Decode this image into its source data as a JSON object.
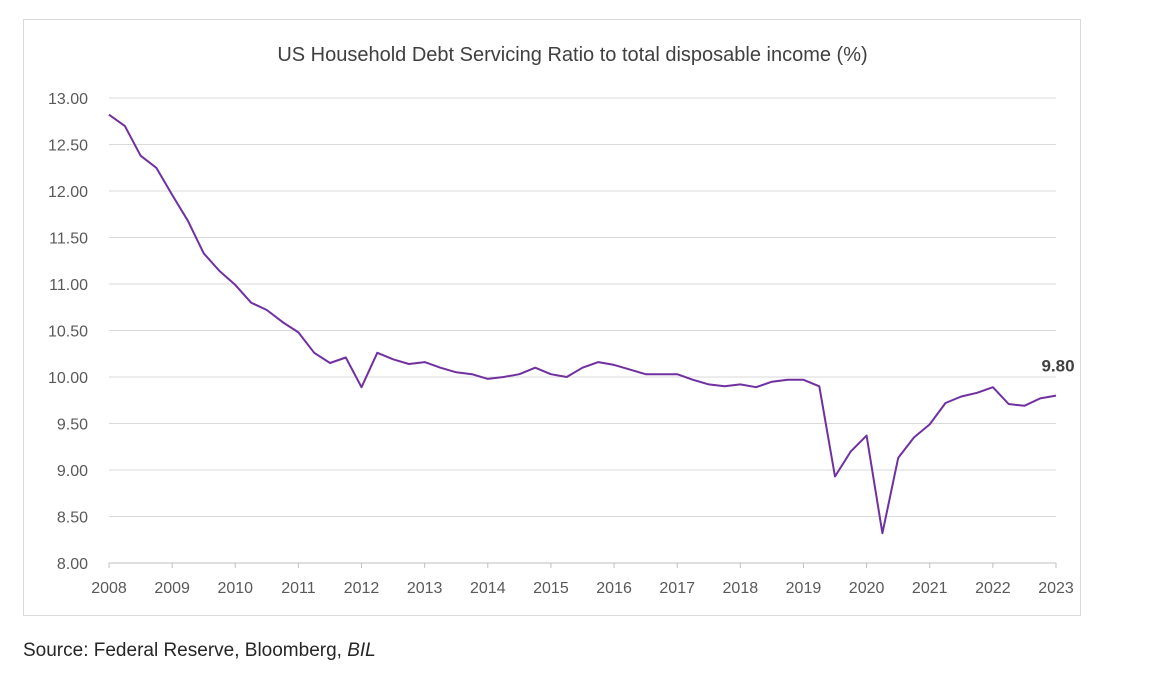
{
  "chart_data": {
    "type": "line",
    "title": "US Household Debt Servicing Ratio to total disposable income (%)",
    "xlabel": "",
    "ylabel": "",
    "ylim": [
      8.0,
      13.0
    ],
    "y_ticks": [
      "8.00",
      "8.50",
      "9.00",
      "9.50",
      "10.00",
      "10.50",
      "11.00",
      "11.50",
      "12.00",
      "12.50",
      "13.00"
    ],
    "x_ticks": [
      "2008",
      "2009",
      "2010",
      "2011",
      "2012",
      "2013",
      "2014",
      "2015",
      "2016",
      "2017",
      "2018",
      "2019",
      "2020",
      "2021",
      "2022",
      "2023"
    ],
    "grid": "horizontal",
    "legend": "none",
    "line_color": "#7030a0",
    "series": [
      {
        "x": [
          2008.0,
          2008.25,
          2008.5,
          2008.75,
          2009.0,
          2009.25,
          2009.5,
          2009.75,
          2010.0,
          2010.25,
          2010.5,
          2010.75,
          2011.0,
          2011.25,
          2011.5,
          2011.75,
          2012.0,
          2012.25,
          2012.5,
          2012.75,
          2013.0,
          2013.25,
          2013.5,
          2013.75,
          2014.0,
          2014.25,
          2014.5,
          2014.75,
          2015.0,
          2015.25,
          2015.5,
          2015.75,
          2016.0,
          2016.25,
          2016.5,
          2016.75,
          2017.0,
          2017.25,
          2017.5,
          2017.75,
          2018.0,
          2018.25,
          2018.5,
          2018.75,
          2019.0,
          2019.25,
          2019.5,
          2019.75,
          2020.0,
          2020.25,
          2020.5,
          2020.75,
          2021.0,
          2021.25,
          2021.5,
          2021.75,
          2022.0,
          2022.25,
          2022.5,
          2022.75,
          2023.0
        ],
        "values": [
          12.82,
          12.7,
          12.38,
          12.25,
          11.96,
          11.68,
          11.33,
          11.14,
          10.99,
          10.8,
          10.72,
          10.59,
          10.48,
          10.26,
          10.15,
          10.21,
          9.89,
          10.26,
          10.19,
          10.14,
          10.16,
          10.1,
          10.05,
          10.03,
          9.98,
          10.0,
          10.03,
          10.1,
          10.03,
          10.0,
          10.1,
          10.16,
          10.13,
          10.08,
          10.03,
          10.03,
          10.03,
          9.97,
          9.92,
          9.9,
          9.92,
          9.89,
          9.95,
          9.97,
          9.97,
          9.9,
          8.93,
          9.2,
          9.37,
          8.32,
          9.13,
          9.35,
          9.49,
          9.72,
          9.79,
          9.83,
          9.89,
          9.71,
          9.69,
          9.77,
          9.8
        ]
      }
    ],
    "annotations": [
      {
        "text": "9.80",
        "x": 2023.0,
        "y": 9.8
      }
    ]
  },
  "source": {
    "prefix": "Source: Federal Reserve, Bloomberg, ",
    "italic": "BIL"
  }
}
